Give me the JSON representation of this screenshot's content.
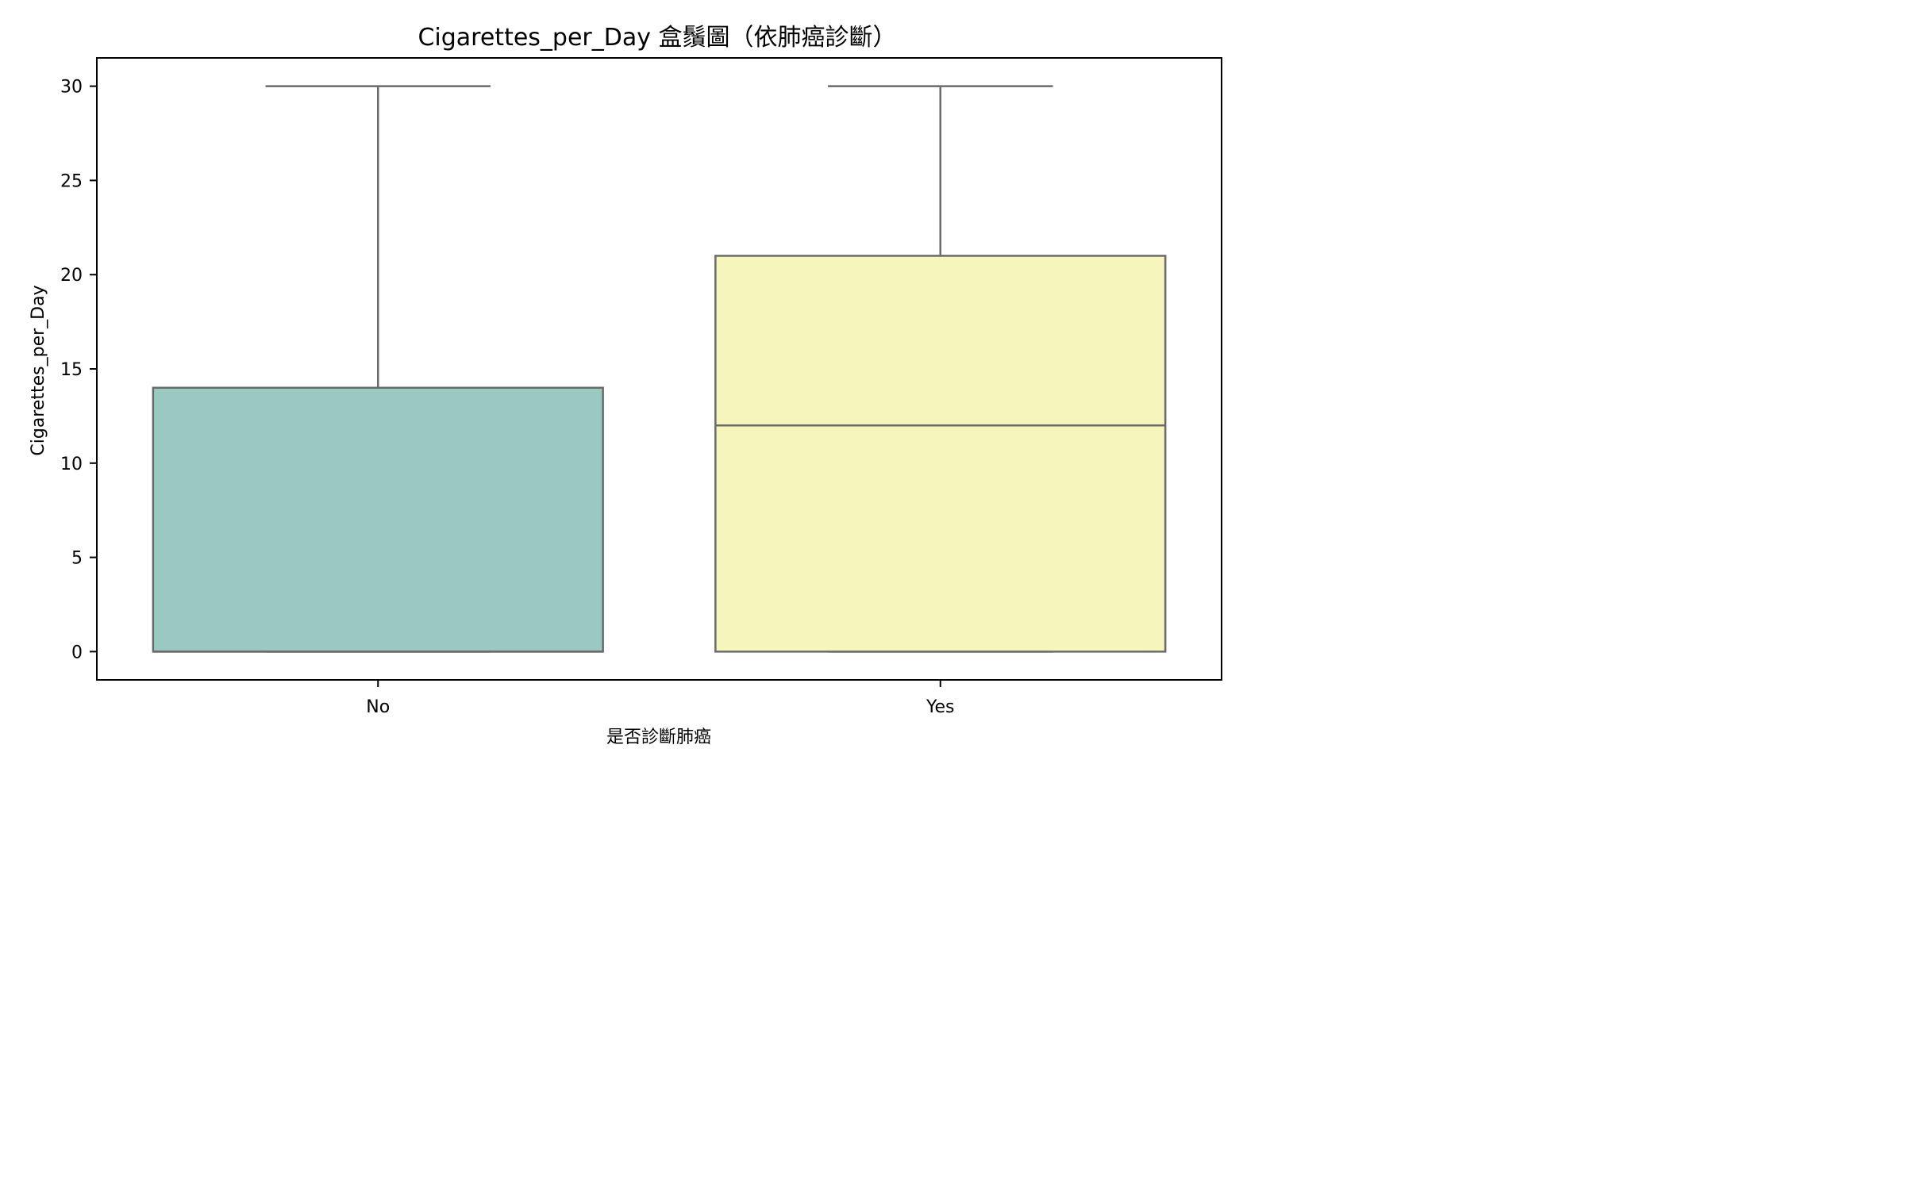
{
  "chart_data": {
    "type": "box",
    "title": "Cigarettes_per_Day 盒鬚圖（依肺癌診斷）",
    "xlabel": "是否診斷肺癌",
    "ylabel": "Cigarettes_per_Day",
    "categories": [
      "No",
      "Yes"
    ],
    "boxes": [
      {
        "category": "No",
        "whisker_low": 0,
        "q1": 0,
        "median": 0,
        "q3": 14,
        "whisker_high": 30,
        "color": "#99c9c0"
      },
      {
        "category": "Yes",
        "whisker_low": 0,
        "q1": 0,
        "median": 12,
        "q3": 21,
        "whisker_high": 30,
        "color": "#f6f5bb"
      }
    ],
    "y_ticks": [
      "0",
      "5",
      "10",
      "15",
      "20",
      "25",
      "30"
    ],
    "ylim": [
      -1.5,
      31.5
    ],
    "grid": false,
    "line_color": "#6a6a6a"
  }
}
